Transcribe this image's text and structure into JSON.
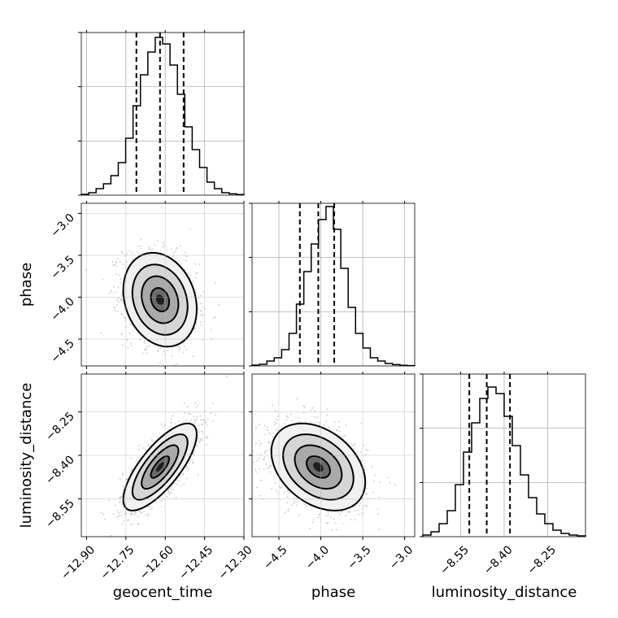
{
  "chart_data": {
    "type": "corner",
    "parameters": [
      "geocent_time",
      "phase",
      "luminosity_distance"
    ],
    "axes": {
      "geocent_time": {
        "label": "geocent_time",
        "range": [
          -12.92,
          -12.3
        ],
        "ticks": [
          -12.9,
          -12.75,
          -12.6,
          -12.45,
          -12.3
        ],
        "tick_labels": [
          "−12.90",
          "−12.75",
          "−12.60",
          "−12.45",
          "−12.30"
        ],
        "quantiles": [
          -12.71,
          -12.62,
          -12.53
        ],
        "hist_bins": [
          0.005,
          0.015,
          0.04,
          0.07,
          0.12,
          0.2,
          0.35,
          0.55,
          0.74,
          0.88,
          0.97,
          0.93,
          0.8,
          0.62,
          0.42,
          0.28,
          0.17,
          0.08,
          0.04,
          0.015,
          0.008,
          0.004
        ]
      },
      "phase": {
        "label": "phase",
        "range": [
          -4.82,
          -2.88
        ],
        "ticks": [
          -4.5,
          -4.0,
          -3.5,
          -3.0
        ],
        "tick_labels": [
          "−4.5",
          "−4.0",
          "−3.5",
          "−3.0"
        ],
        "quantiles": [
          -4.25,
          -4.03,
          -3.84
        ],
        "hist_bins": [
          0.005,
          0.01,
          0.03,
          0.05,
          0.1,
          0.2,
          0.38,
          0.58,
          0.75,
          0.9,
          0.98,
          0.84,
          0.6,
          0.36,
          0.2,
          0.11,
          0.05,
          0.03,
          0.015,
          0.008,
          0.004,
          0.002
        ]
      },
      "luminosity_distance": {
        "label": "luminosity_distance",
        "range": [
          -8.68,
          -8.12
        ],
        "ticks": [
          -8.55,
          -8.4,
          -8.25
        ],
        "tick_labels": [
          "−8.55",
          "−8.40",
          "−8.25"
        ],
        "quantiles": [
          -8.52,
          -8.46,
          -8.38
        ],
        "hist_bins": [
          0.01,
          0.03,
          0.08,
          0.16,
          0.32,
          0.52,
          0.7,
          0.85,
          0.92,
          0.88,
          0.74,
          0.56,
          0.38,
          0.24,
          0.14,
          0.08,
          0.04,
          0.02,
          0.01,
          0.005
        ]
      }
    },
    "pairs": [
      {
        "x": "geocent_time",
        "y": "phase",
        "mean": [
          -12.62,
          -4.03
        ],
        "std": [
          0.07,
          0.28
        ],
        "corr": -0.2
      },
      {
        "x": "geocent_time",
        "y": "luminosity_distance",
        "mean": [
          -12.62,
          -8.44
        ],
        "std": [
          0.07,
          0.075
        ],
        "corr": 0.75
      },
      {
        "x": "phase",
        "y": "luminosity_distance",
        "mean": [
          -4.03,
          -8.44
        ],
        "std": [
          0.28,
          0.075
        ],
        "corr": -0.35
      }
    ],
    "contour_levels_sigma": [
      0.5,
      1.0,
      1.5,
      2.0
    ],
    "grid": true
  }
}
